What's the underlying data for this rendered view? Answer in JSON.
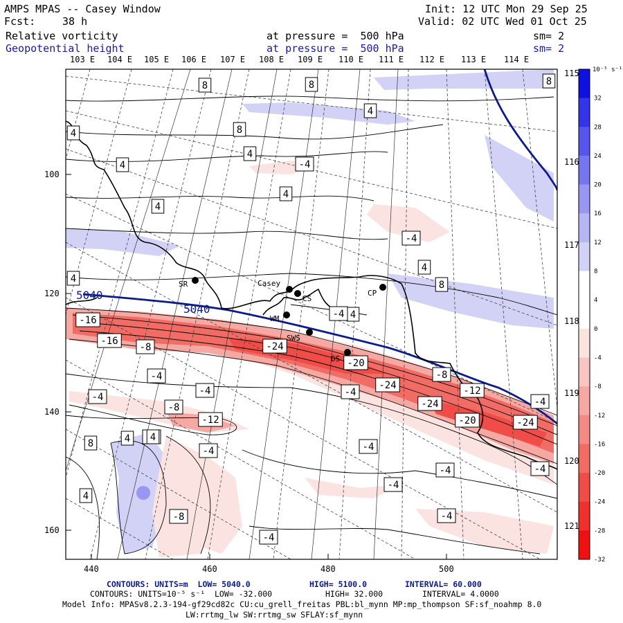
{
  "header": {
    "model": "AMPS MPAS -- Casey Window",
    "fcst_label": "Fcst:",
    "fcst_value": "38 h",
    "init": "Init: 12 UTC Mon 29 Sep 25",
    "valid": "Valid: 02 UTC Wed 01 Oct 25",
    "field1": "Relative vorticity",
    "field2": "Geopotential height",
    "pressure1": "at pressure =  500 hPa",
    "pressure2": "at pressure =  500 hPa",
    "sm1": "sm= 2",
    "sm2": "sm= 2"
  },
  "map": {
    "top_lon_labels": [
      "103 E",
      "104 E",
      "105 E",
      "106 E",
      "107 E",
      "108 E",
      "109 E",
      "110 E",
      "111 E",
      "112 E",
      "113 E",
      "114 E"
    ],
    "right_lon_labels": [
      "115 E",
      "116 E",
      "117 E",
      "118 E",
      "119 E",
      "120 E",
      "121 E"
    ],
    "x_ticks": [
      "440",
      "460",
      "480",
      "500"
    ],
    "y_ticks": [
      "100",
      "120",
      "140",
      "160"
    ],
    "stations": [
      {
        "name": "SR"
      },
      {
        "name": "Casey"
      },
      {
        "name": "CS"
      },
      {
        "name": "CP"
      },
      {
        "name": "WM"
      },
      {
        "name": "SWS"
      },
      {
        "name": "DS"
      }
    ],
    "height_labels": [
      "5040",
      "5040"
    ],
    "vorticity_labels": [
      "8",
      "8",
      "8",
      "8",
      "4",
      "4",
      "4",
      "4",
      "4",
      "4",
      "4",
      "4",
      "4",
      "-4",
      "-4",
      "-4",
      "-4",
      "-4",
      "-4",
      "-4",
      "-4",
      "-4",
      "-4",
      "-4",
      "-4",
      "-4",
      "-4",
      "-8",
      "-8",
      "-8",
      "-8",
      "-12",
      "-12",
      "-16",
      "-16",
      "-20",
      "-20",
      "-24",
      "-24",
      "-24",
      "-24",
      "8",
      "8",
      "4",
      "4",
      "4",
      "-4",
      "-4"
    ]
  },
  "colorbar": {
    "units": "10⁻⁵ s⁻¹",
    "labels": [
      "32",
      "28",
      "24",
      "20",
      "16",
      "12",
      "8",
      "4",
      "0",
      "-4",
      "-8",
      "-12",
      "-16",
      "-20",
      "-24",
      "-28",
      "-32"
    ],
    "colors": [
      "#1010e0",
      "#3434e8",
      "#5656ec",
      "#7676ef",
      "#9898f2",
      "#b6b6f4",
      "#d2d2f6",
      "#ffffff",
      "#ffffff",
      "#fbe3e1",
      "#f8c6c2",
      "#f6a8a2",
      "#f38a84",
      "#f26c66",
      "#f04d48",
      "#f0302c",
      "#f01010"
    ]
  },
  "footer": {
    "line1_a": "CONTOURS: UNITS=m  LOW= 5040.0",
    "line1_b": "HIGH= 5100.0",
    "line1_c": "INTERVAL= 60.000",
    "line2_a": "CONTOURS: UNITS=10⁻⁵ s⁻¹  LOW= -32.000",
    "line2_b": "HIGH= 32.000",
    "line2_c": "INTERVAL= 4.0000",
    "line3": "Model Info: MPASv8.2.3-194-gf29cd82c CU:cu_grell_freitas PBL:bl_mynn MP:mp_thompson SF:sf_noahmp 8.0",
    "line4": "LW:rrtmg_lw SW:rrtmg_sw SFLAY:sf_mynn"
  }
}
